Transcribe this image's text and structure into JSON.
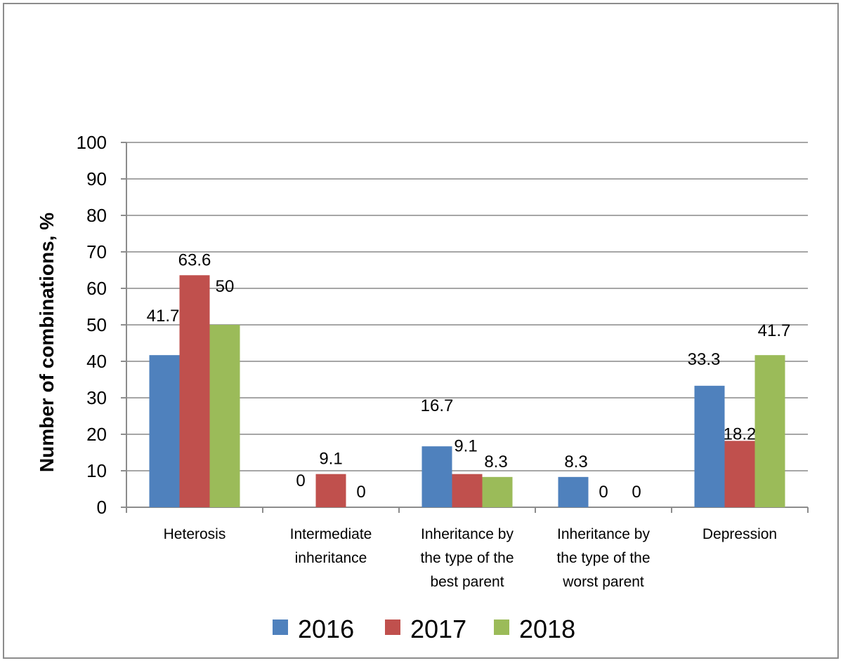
{
  "chart_data": {
    "type": "bar",
    "title": "",
    "xlabel": "",
    "ylabel": "Number of combinations, %",
    "ylim": [
      0,
      100
    ],
    "yticks": [
      "0",
      "10",
      "20",
      "30",
      "40",
      "50",
      "60",
      "70",
      "80",
      "90",
      "100"
    ],
    "grid": true,
    "legend_position": "bottom",
    "categories": [
      [
        "Heterosis"
      ],
      [
        "Intermediate",
        "inheritance"
      ],
      [
        "Inheritance by",
        "the type of the",
        "best parent"
      ],
      [
        "Inheritance by",
        "the type of the",
        "worst parent"
      ],
      [
        "Depression"
      ]
    ],
    "series": [
      {
        "name": "2016",
        "color": "#4f81bd",
        "values": [
          41.7,
          0,
          16.7,
          8.3,
          33.3
        ],
        "labels": [
          "41.7",
          "0",
          "16.7",
          "8.3",
          "33.3"
        ]
      },
      {
        "name": "2017",
        "color": "#c0504d",
        "values": [
          63.6,
          9.1,
          9.1,
          0,
          18.2
        ],
        "labels": [
          "63.6",
          "9.1",
          "9.1",
          "0",
          "18.2"
        ]
      },
      {
        "name": "2018",
        "color": "#9bbb59",
        "values": [
          50,
          0,
          8.3,
          0,
          41.7
        ],
        "labels": [
          "50",
          "0",
          "8.3",
          "0",
          "41.7"
        ]
      }
    ]
  }
}
